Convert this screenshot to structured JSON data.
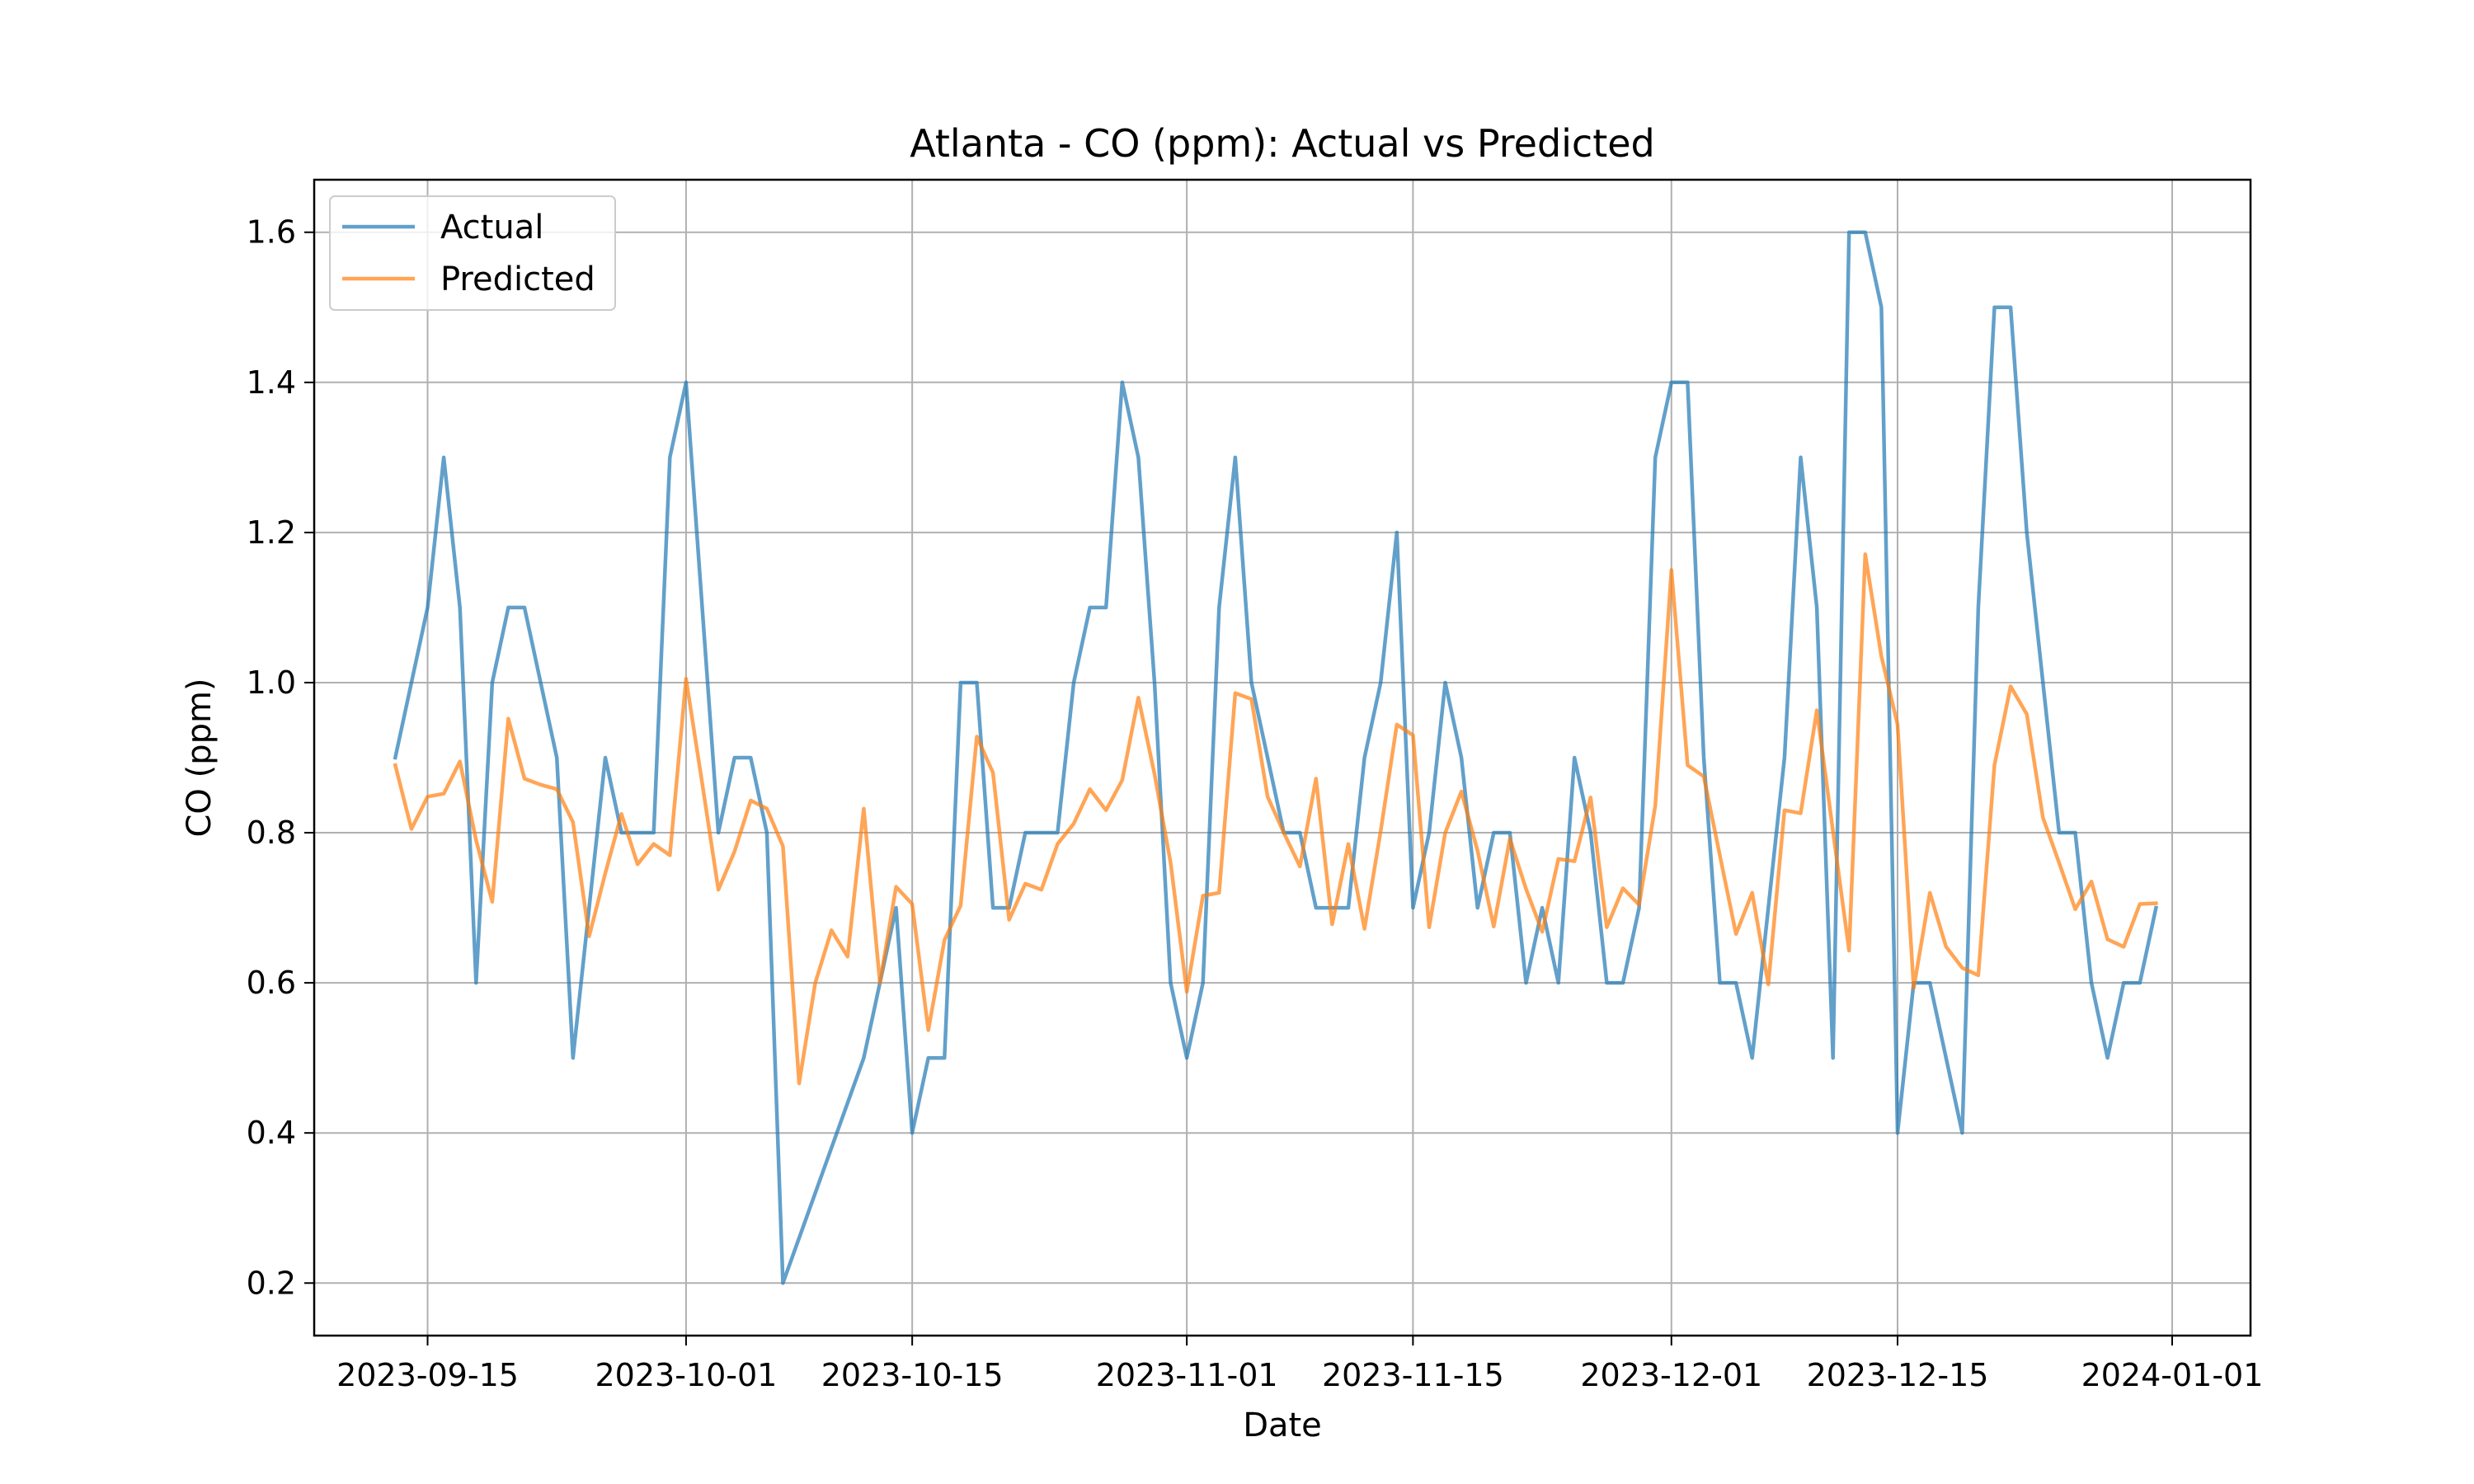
{
  "chart_data": {
    "type": "line",
    "title": "Atlanta - CO (ppm): Actual vs Predicted",
    "xlabel": "Date",
    "ylabel": "CO (ppm)",
    "grid": true,
    "legend_position": "top-left",
    "ylim": [
      0.13,
      1.67
    ],
    "yticks": [
      0.2,
      0.4,
      0.6,
      0.8,
      1.0,
      1.2,
      1.4,
      1.6
    ],
    "ytick_labels": [
      "0.2",
      "0.4",
      "0.6",
      "0.8",
      "1.0",
      "1.2",
      "1.4",
      "1.6"
    ],
    "x_origin": "2023-09-01",
    "xlim": [
      6.98,
      126.85
    ],
    "xticks": [
      14,
      30,
      44,
      61,
      75,
      91,
      105,
      122
    ],
    "xtick_labels": [
      "2023-09-15",
      "2023-10-01",
      "2023-10-15",
      "2023-11-01",
      "2023-11-15",
      "2023-12-01",
      "2023-12-15",
      "2024-01-01"
    ],
    "x_units": "days since 2023-09-01",
    "series": [
      {
        "name": "Actual",
        "color": "#1f77b4",
        "points": [
          [
            12,
            0.9
          ],
          [
            14,
            1.1
          ],
          [
            15,
            1.3
          ],
          [
            16,
            1.1
          ],
          [
            17,
            0.6
          ],
          [
            18,
            1.0
          ],
          [
            19,
            1.1
          ],
          [
            20,
            1.1
          ],
          [
            22,
            0.9
          ],
          [
            23,
            0.5
          ],
          [
            25,
            0.9
          ],
          [
            26,
            0.8
          ],
          [
            28,
            0.8
          ],
          [
            29,
            1.3
          ],
          [
            30,
            1.4
          ],
          [
            32,
            0.8
          ],
          [
            33,
            0.9
          ],
          [
            34,
            0.9
          ],
          [
            35,
            0.8
          ],
          [
            36,
            0.2
          ],
          [
            41,
            0.5
          ],
          [
            43,
            0.7
          ],
          [
            44,
            0.4
          ],
          [
            45,
            0.5
          ],
          [
            46,
            0.5
          ],
          [
            47,
            1.0
          ],
          [
            48,
            1.0
          ],
          [
            49,
            0.7
          ],
          [
            50,
            0.7
          ],
          [
            51,
            0.8
          ],
          [
            53,
            0.8
          ],
          [
            54,
            1.0
          ],
          [
            55,
            1.1
          ],
          [
            56,
            1.1
          ],
          [
            57,
            1.4
          ],
          [
            58,
            1.3
          ],
          [
            59,
            1.0
          ],
          [
            60,
            0.6
          ],
          [
            61,
            0.5
          ],
          [
            62,
            0.6
          ],
          [
            63,
            1.1
          ],
          [
            64,
            1.3
          ],
          [
            65,
            1.0
          ],
          [
            67,
            0.8
          ],
          [
            68,
            0.8
          ],
          [
            69,
            0.7
          ],
          [
            71,
            0.7
          ],
          [
            72,
            0.9
          ],
          [
            73,
            1.0
          ],
          [
            74,
            1.2
          ],
          [
            75,
            0.7
          ],
          [
            76,
            0.8
          ],
          [
            77,
            1.0
          ],
          [
            78,
            0.9
          ],
          [
            79,
            0.7
          ],
          [
            80,
            0.8
          ],
          [
            81,
            0.8
          ],
          [
            82,
            0.6
          ],
          [
            83,
            0.7
          ],
          [
            84,
            0.6
          ],
          [
            85,
            0.9
          ],
          [
            86,
            0.8
          ],
          [
            87,
            0.6
          ],
          [
            88,
            0.6
          ],
          [
            89,
            0.7
          ],
          [
            90,
            1.3
          ],
          [
            91,
            1.4
          ],
          [
            92,
            1.4
          ],
          [
            93,
            0.9
          ],
          [
            94,
            0.6
          ],
          [
            95,
            0.6
          ],
          [
            96,
            0.5
          ],
          [
            98,
            0.9
          ],
          [
            99,
            1.3
          ],
          [
            100,
            1.1
          ],
          [
            101,
            0.5
          ],
          [
            102,
            1.6
          ],
          [
            103,
            1.6
          ],
          [
            104,
            1.5
          ],
          [
            105,
            0.4
          ],
          [
            106,
            0.6
          ],
          [
            107,
            0.6
          ],
          [
            109,
            0.4
          ],
          [
            110,
            1.1
          ],
          [
            111,
            1.5
          ],
          [
            112,
            1.5
          ],
          [
            113,
            1.2
          ],
          [
            114,
            1.0
          ],
          [
            115,
            0.8
          ],
          [
            116,
            0.8
          ],
          [
            117,
            0.6
          ],
          [
            118,
            0.5
          ],
          [
            119,
            0.6
          ],
          [
            120,
            0.6
          ],
          [
            121,
            0.7
          ]
        ]
      },
      {
        "name": "Predicted",
        "color": "#ff7f0e",
        "points": [
          [
            12,
            0.89
          ],
          [
            13,
            0.805
          ],
          [
            14,
            0.848
          ],
          [
            15,
            0.852
          ],
          [
            16,
            0.895
          ],
          [
            17,
            0.79
          ],
          [
            18,
            0.708
          ],
          [
            19,
            0.952
          ],
          [
            20,
            0.872
          ],
          [
            21,
            0.864
          ],
          [
            22,
            0.858
          ],
          [
            23,
            0.814
          ],
          [
            24,
            0.662
          ],
          [
            25,
            0.746
          ],
          [
            26,
            0.825
          ],
          [
            27,
            0.758
          ],
          [
            28,
            0.785
          ],
          [
            29,
            0.77
          ],
          [
            30,
            1.005
          ],
          [
            31,
            0.866
          ],
          [
            32,
            0.724
          ],
          [
            33,
            0.775
          ],
          [
            34,
            0.843
          ],
          [
            35,
            0.832
          ],
          [
            36,
            0.782
          ],
          [
            37,
            0.466
          ],
          [
            38,
            0.6
          ],
          [
            39,
            0.67
          ],
          [
            40,
            0.635
          ],
          [
            41,
            0.832
          ],
          [
            42,
            0.6
          ],
          [
            43,
            0.728
          ],
          [
            44,
            0.705
          ],
          [
            45,
            0.537
          ],
          [
            46,
            0.657
          ],
          [
            47,
            0.703
          ],
          [
            48,
            0.928
          ],
          [
            49,
            0.88
          ],
          [
            50,
            0.684
          ],
          [
            51,
            0.732
          ],
          [
            52,
            0.724
          ],
          [
            53,
            0.785
          ],
          [
            54,
            0.812
          ],
          [
            55,
            0.858
          ],
          [
            56,
            0.83
          ],
          [
            57,
            0.87
          ],
          [
            58,
            0.98
          ],
          [
            59,
            0.878
          ],
          [
            60,
            0.76
          ],
          [
            61,
            0.588
          ],
          [
            62,
            0.716
          ],
          [
            63,
            0.72
          ],
          [
            64,
            0.986
          ],
          [
            65,
            0.978
          ],
          [
            66,
            0.848
          ],
          [
            67,
            0.8
          ],
          [
            68,
            0.755
          ],
          [
            69,
            0.872
          ],
          [
            70,
            0.678
          ],
          [
            71,
            0.785
          ],
          [
            72,
            0.672
          ],
          [
            73,
            0.802
          ],
          [
            74,
            0.944
          ],
          [
            75,
            0.93
          ],
          [
            76,
            0.674
          ],
          [
            77,
            0.8
          ],
          [
            78,
            0.855
          ],
          [
            79,
            0.776
          ],
          [
            80,
            0.675
          ],
          [
            81,
            0.792
          ],
          [
            82,
            0.725
          ],
          [
            83,
            0.668
          ],
          [
            84,
            0.765
          ],
          [
            85,
            0.762
          ],
          [
            86,
            0.847
          ],
          [
            87,
            0.674
          ],
          [
            88,
            0.726
          ],
          [
            89,
            0.704
          ],
          [
            90,
            0.836
          ],
          [
            91,
            1.15
          ],
          [
            92,
            0.89
          ],
          [
            93,
            0.875
          ],
          [
            94,
            0.77
          ],
          [
            95,
            0.665
          ],
          [
            96,
            0.72
          ],
          [
            97,
            0.598
          ],
          [
            98,
            0.83
          ],
          [
            99,
            0.826
          ],
          [
            100,
            0.963
          ],
          [
            101,
            0.802
          ],
          [
            102,
            0.643
          ],
          [
            103,
            1.171
          ],
          [
            104,
            1.035
          ],
          [
            105,
            0.944
          ],
          [
            106,
            0.593
          ],
          [
            107,
            0.72
          ],
          [
            108,
            0.648
          ],
          [
            109,
            0.62
          ],
          [
            110,
            0.61
          ],
          [
            111,
            0.89
          ],
          [
            112,
            0.995
          ],
          [
            113,
            0.958
          ],
          [
            114,
            0.82
          ],
          [
            115,
            0.76
          ],
          [
            116,
            0.698
          ],
          [
            117,
            0.735
          ],
          [
            118,
            0.658
          ],
          [
            119,
            0.648
          ],
          [
            120,
            0.705
          ],
          [
            121,
            0.706
          ]
        ]
      }
    ]
  }
}
